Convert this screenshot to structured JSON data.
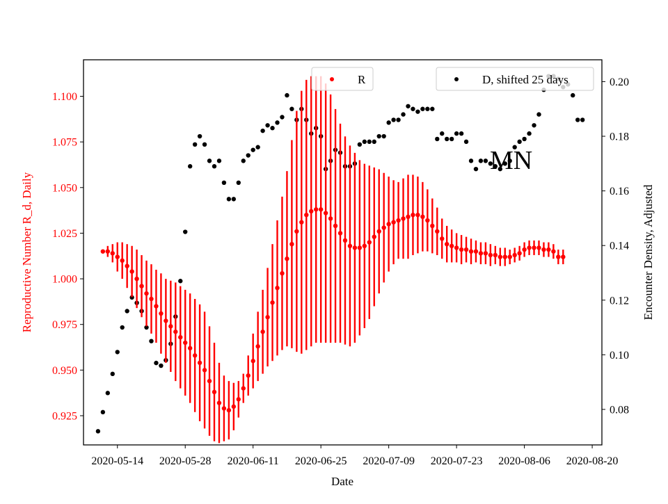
{
  "chart_data": {
    "type": "scatter",
    "xlabel": "Date",
    "y_left_label": "Reproductive Number R_d, Daily",
    "y_right_label": "Encounter Density, Adjusted",
    "annotation": "MN",
    "x_ticks": [
      "2020-05-14",
      "2020-05-28",
      "2020-06-11",
      "2020-06-25",
      "2020-07-09",
      "2020-07-23",
      "2020-08-06",
      "2020-08-20"
    ],
    "x_range": [
      "2020-05-07",
      "2020-08-22"
    ],
    "y_left_ticks": [
      "0.925",
      "0.950",
      "0.975",
      "1.000",
      "1.025",
      "1.050",
      "1.075",
      "1.100"
    ],
    "y_left_range": [
      0.909,
      1.12
    ],
    "y_right_ticks": [
      "0.08",
      "0.10",
      "0.12",
      "0.14",
      "0.16",
      "0.18",
      "0.20"
    ],
    "y_right_range": [
      0.067,
      0.208
    ],
    "colors": {
      "R": "#ff0000",
      "D": "#000000",
      "left_axis_text": "#ff0000"
    },
    "legends": [
      {
        "label": "R",
        "color": "#ff0000",
        "placement": "top-center"
      },
      {
        "label": "D, shifted 25 days",
        "color": "#000000",
        "placement": "top-right"
      }
    ],
    "series": [
      {
        "name": "R",
        "axis": "left",
        "color": "#ff0000",
        "start_date": "2020-05-11",
        "step_days": 1,
        "values": [
          1.015,
          1.015,
          1.014,
          1.012,
          1.01,
          1.007,
          1.004,
          1.0,
          0.996,
          0.992,
          0.989,
          0.985,
          0.981,
          0.977,
          0.974,
          0.971,
          0.968,
          0.965,
          0.962,
          0.958,
          0.954,
          0.95,
          0.944,
          0.938,
          0.932,
          0.929,
          0.928,
          0.93,
          0.934,
          0.94,
          0.947,
          0.955,
          0.963,
          0.971,
          0.979,
          0.987,
          0.995,
          1.003,
          1.011,
          1.019,
          1.026,
          1.031,
          1.035,
          1.037,
          1.038,
          1.038,
          1.036,
          1.033,
          1.029,
          1.025,
          1.021,
          1.018,
          1.017,
          1.017,
          1.018,
          1.02,
          1.023,
          1.026,
          1.028,
          1.03,
          1.031,
          1.032,
          1.033,
          1.034,
          1.035,
          1.035,
          1.034,
          1.032,
          1.029,
          1.026,
          1.022,
          1.019,
          1.018,
          1.017,
          1.016,
          1.016,
          1.015,
          1.015,
          1.014,
          1.014,
          1.013,
          1.013,
          1.012,
          1.012,
          1.012,
          1.013,
          1.014,
          1.016,
          1.017,
          1.017,
          1.017,
          1.016,
          1.016,
          1.015,
          1.012,
          1.012
        ],
        "errors": [
          0,
          0.003,
          0.005,
          0.008,
          0.01,
          0.012,
          0.014,
          0.016,
          0.017,
          0.018,
          0.019,
          0.02,
          0.022,
          0.023,
          0.025,
          0.027,
          0.028,
          0.029,
          0.03,
          0.031,
          0.032,
          0.032,
          0.03,
          0.027,
          0.022,
          0.018,
          0.016,
          0.013,
          0.01,
          0.008,
          0.011,
          0.015,
          0.019,
          0.023,
          0.027,
          0.032,
          0.037,
          0.042,
          0.048,
          0.057,
          0.066,
          0.072,
          0.074,
          0.074,
          0.073,
          0.073,
          0.071,
          0.068,
          0.064,
          0.06,
          0.057,
          0.055,
          0.052,
          0.048,
          0.045,
          0.042,
          0.038,
          0.034,
          0.03,
          0.026,
          0.023,
          0.021,
          0.022,
          0.023,
          0.022,
          0.021,
          0.019,
          0.017,
          0.015,
          0.013,
          0.011,
          0.01,
          0.009,
          0.008,
          0.008,
          0.007,
          0.007,
          0.006,
          0.006,
          0.006,
          0.006,
          0.005,
          0.005,
          0.005,
          0.004,
          0.004,
          0.004,
          0.004,
          0.004,
          0.004,
          0.004,
          0.004,
          0.004,
          0.004,
          0.004,
          0.004
        ]
      },
      {
        "name": "D, shifted 25 days",
        "axis": "right",
        "color": "#000000",
        "start_date": "2020-05-10",
        "step_days": 1,
        "values": [
          0.072,
          0.079,
          0.086,
          0.093,
          0.101,
          0.11,
          0.116,
          0.121,
          0.119,
          0.116,
          0.11,
          0.105,
          0.097,
          0.096,
          0.098,
          0.104,
          0.114,
          0.127,
          0.145,
          0.169,
          0.177,
          0.18,
          0.177,
          0.171,
          0.169,
          0.171,
          0.163,
          0.157,
          0.157,
          0.163,
          0.171,
          0.173,
          0.175,
          0.176,
          0.182,
          0.184,
          0.183,
          0.185,
          0.187,
          0.195,
          0.19,
          0.186,
          0.19,
          0.186,
          0.181,
          0.183,
          0.18,
          0.168,
          0.171,
          0.175,
          0.174,
          0.169,
          0.169,
          0.17,
          0.177,
          0.178,
          0.178,
          0.178,
          0.18,
          0.18,
          0.185,
          0.186,
          0.186,
          0.188,
          0.191,
          0.19,
          0.189,
          0.19,
          0.19,
          0.19,
          0.179,
          0.181,
          0.179,
          0.179,
          0.181,
          0.181,
          0.178,
          0.171,
          0.168,
          0.171,
          0.171,
          0.17,
          0.169,
          0.168,
          0.17,
          0.171,
          0.176,
          0.178,
          0.179,
          0.181,
          0.184,
          0.188,
          0.197,
          0.202,
          0.202,
          0.201,
          0.198,
          0.199,
          0.195,
          0.186,
          0.186
        ]
      }
    ]
  }
}
